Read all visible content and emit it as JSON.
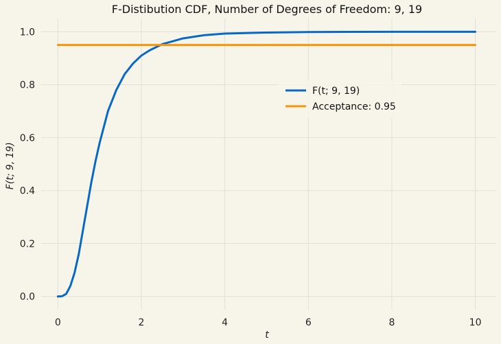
{
  "chart_data": {
    "type": "line",
    "title": "F-Distibution CDF, Number of Degrees of Freedom: 9, 19",
    "xlabel": "t",
    "ylabel": "F(t; 9, 19)",
    "xlim": [
      -0.4,
      10.5
    ],
    "ylim": [
      -0.05,
      1.05
    ],
    "x_ticks": [
      0,
      2,
      4,
      6,
      8,
      10
    ],
    "y_ticks": [
      0.0,
      0.2,
      0.4,
      0.6,
      0.8,
      1.0
    ],
    "x_tick_labels": [
      "0",
      "2",
      "4",
      "6",
      "8",
      "10"
    ],
    "y_tick_labels": [
      "0.0",
      "0.2",
      "0.4",
      "0.6",
      "0.8",
      "1.0"
    ],
    "grid": true,
    "legend_position": "center-right",
    "series": [
      {
        "name": "F(t; 9, 19)",
        "color": "#0868c4",
        "x": [
          0,
          0.1,
          0.2,
          0.3,
          0.4,
          0.5,
          0.6,
          0.7,
          0.8,
          0.9,
          1.0,
          1.2,
          1.4,
          1.6,
          1.8,
          2.0,
          2.2,
          2.5,
          3.0,
          3.5,
          4.0,
          5.0,
          6.0,
          7.0,
          8.0,
          9.0,
          10.0
        ],
        "y": [
          0.0,
          0.001,
          0.01,
          0.04,
          0.09,
          0.16,
          0.25,
          0.34,
          0.43,
          0.51,
          0.58,
          0.7,
          0.78,
          0.84,
          0.88,
          0.91,
          0.93,
          0.953,
          0.975,
          0.987,
          0.993,
          0.997,
          0.999,
          0.9995,
          0.9998,
          0.9999,
          1.0
        ]
      },
      {
        "name": "Acceptance: 0.95",
        "color": "#f5960a",
        "x": [
          0,
          10
        ],
        "y": [
          0.95,
          0.95
        ]
      }
    ]
  }
}
